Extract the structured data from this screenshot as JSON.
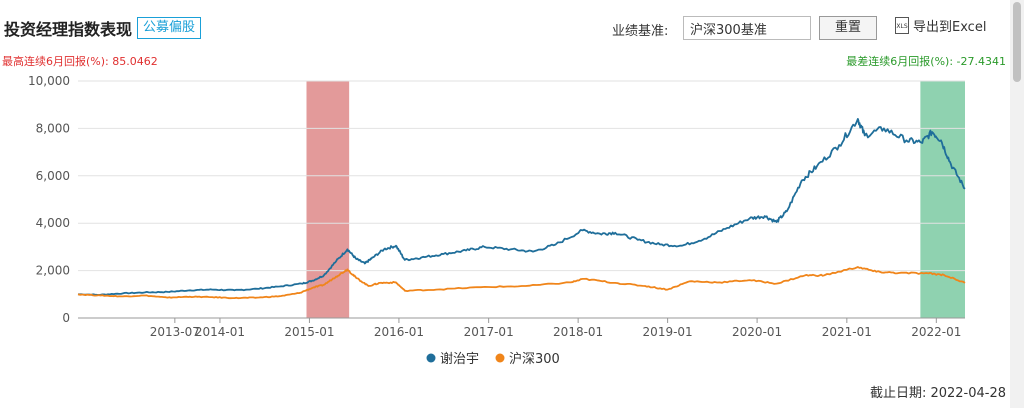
{
  "header": {
    "title": "投资经理指数表现",
    "tag": "公募偏股",
    "benchmark_label": "业绩基准:",
    "benchmark_value": "沪深300基准",
    "reset_label": "重置",
    "export_label": "导出到Excel",
    "export_icon": "xls-file-icon",
    "export_icon_text": "XLS"
  },
  "stats": {
    "max_label": "最高连续6月回报(%): 85.0462",
    "min_label": "最差连续6月回报(%): -27.4341"
  },
  "footer": {
    "date_label": "截止日期: 2022-04-28"
  },
  "colors": {
    "series_1": "#1f6e9a",
    "series_2": "#f0851a",
    "max_band": "#e39a9a",
    "min_band": "#8fd2b0"
  },
  "chart_data": {
    "type": "line",
    "xlabel": "",
    "ylabel": "",
    "ylim": [
      0,
      10000
    ],
    "yticks": [
      0,
      2000,
      4000,
      6000,
      8000,
      10000
    ],
    "ytick_labels": [
      "0",
      "2,000",
      "4,000",
      "6,000",
      "8,000",
      "10,000"
    ],
    "xlim": [
      "2012-06-01",
      "2022-04-28"
    ],
    "xticks": [
      "2013-07",
      "2014-01",
      "2015-01",
      "2016-01",
      "2017-01",
      "2018-01",
      "2019-01",
      "2020-01",
      "2021-01",
      "2022-01"
    ],
    "xtick_labels": [
      "2013-07",
      "2014-01",
      "2015-01",
      "2016-01",
      "2017-01",
      "2018-01",
      "2019-01",
      "2020-01",
      "2021-01",
      "2022-01"
    ],
    "grid": "horizontal",
    "legend": "bottom",
    "bands": [
      {
        "kind": "max",
        "start": "2014-12-20",
        "end": "2015-06-12"
      },
      {
        "kind": "min",
        "start": "2021-10-28",
        "end": "2022-04-28"
      }
    ],
    "series": [
      {
        "name": "谢治宇",
        "points": [
          [
            "2012-06-01",
            1000
          ],
          [
            "2012-09-01",
            980
          ],
          [
            "2012-12-01",
            1040
          ],
          [
            "2013-03-01",
            1080
          ],
          [
            "2013-06-01",
            1100
          ],
          [
            "2013-09-01",
            1170
          ],
          [
            "2013-12-01",
            1200
          ],
          [
            "2014-03-01",
            1170
          ],
          [
            "2014-06-01",
            1230
          ],
          [
            "2014-09-01",
            1330
          ],
          [
            "2014-12-01",
            1450
          ],
          [
            "2015-01-15",
            1580
          ],
          [
            "2015-03-01",
            1800
          ],
          [
            "2015-04-20",
            2400
          ],
          [
            "2015-06-05",
            2900
          ],
          [
            "2015-07-10",
            2500
          ],
          [
            "2015-08-15",
            2300
          ],
          [
            "2015-09-10",
            2500
          ],
          [
            "2015-11-01",
            2900
          ],
          [
            "2015-12-20",
            3050
          ],
          [
            "2016-01-25",
            2450
          ],
          [
            "2016-04-01",
            2550
          ],
          [
            "2016-07-01",
            2700
          ],
          [
            "2016-10-01",
            2850
          ],
          [
            "2016-12-15",
            3000
          ],
          [
            "2017-04-01",
            2900
          ],
          [
            "2017-07-01",
            2800
          ],
          [
            "2017-10-01",
            3100
          ],
          [
            "2018-01-20",
            3700
          ],
          [
            "2018-04-01",
            3550
          ],
          [
            "2018-06-01",
            3600
          ],
          [
            "2018-09-01",
            3300
          ],
          [
            "2018-12-01",
            3100
          ],
          [
            "2019-03-01",
            3050
          ],
          [
            "2019-06-01",
            3350
          ],
          [
            "2019-09-01",
            3800
          ],
          [
            "2019-12-01",
            4200
          ],
          [
            "2020-02-01",
            4300
          ],
          [
            "2020-03-20",
            4050
          ],
          [
            "2020-05-01",
            4500
          ],
          [
            "2020-07-01",
            5800
          ],
          [
            "2020-09-01",
            6400
          ],
          [
            "2020-12-01",
            7300
          ],
          [
            "2021-02-15",
            8400
          ],
          [
            "2021-03-15",
            7700
          ],
          [
            "2021-06-01",
            8000
          ],
          [
            "2021-09-01",
            7500
          ],
          [
            "2021-11-01",
            7400
          ],
          [
            "2021-12-15",
            7850
          ],
          [
            "2022-01-20",
            7500
          ],
          [
            "2022-03-01",
            6500
          ],
          [
            "2022-04-28",
            5450
          ]
        ]
      },
      {
        "name": "沪深300",
        "points": [
          [
            "2012-06-01",
            1000
          ],
          [
            "2012-09-01",
            950
          ],
          [
            "2012-12-01",
            910
          ],
          [
            "2013-03-01",
            950
          ],
          [
            "2013-06-01",
            860
          ],
          [
            "2013-09-01",
            900
          ],
          [
            "2013-12-01",
            880
          ],
          [
            "2014-03-01",
            840
          ],
          [
            "2014-06-01",
            860
          ],
          [
            "2014-09-01",
            920
          ],
          [
            "2014-11-20",
            1050
          ],
          [
            "2015-01-15",
            1280
          ],
          [
            "2015-03-01",
            1400
          ],
          [
            "2015-04-20",
            1750
          ],
          [
            "2015-06-05",
            2050
          ],
          [
            "2015-07-10",
            1700
          ],
          [
            "2015-08-30",
            1350
          ],
          [
            "2015-10-15",
            1480
          ],
          [
            "2015-12-20",
            1500
          ],
          [
            "2016-01-25",
            1150
          ],
          [
            "2016-06-01",
            1200
          ],
          [
            "2016-12-01",
            1300
          ],
          [
            "2017-06-01",
            1350
          ],
          [
            "2017-12-01",
            1500
          ],
          [
            "2018-01-25",
            1650
          ],
          [
            "2018-06-01",
            1480
          ],
          [
            "2018-10-01",
            1350
          ],
          [
            "2019-01-01",
            1200
          ],
          [
            "2019-04-01",
            1550
          ],
          [
            "2019-08-01",
            1500
          ],
          [
            "2019-12-01",
            1600
          ],
          [
            "2020-03-20",
            1450
          ],
          [
            "2020-07-15",
            1800
          ],
          [
            "2020-10-01",
            1800
          ],
          [
            "2021-02-15",
            2150
          ],
          [
            "2021-05-01",
            1950
          ],
          [
            "2021-08-01",
            1900
          ],
          [
            "2021-12-01",
            1880
          ],
          [
            "2022-02-01",
            1820
          ],
          [
            "2022-04-28",
            1480
          ]
        ]
      }
    ]
  }
}
